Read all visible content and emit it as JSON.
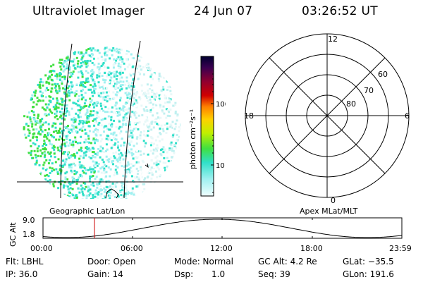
{
  "header": {
    "instrument": "Ultraviolet Imager",
    "date": "24 Jun 07",
    "time": "03:26:52 UT"
  },
  "colorbar": {
    "unit_label": "photon cm⁻²s⁻¹",
    "ticks": [
      "100",
      "10"
    ],
    "scale": "log"
  },
  "geo_panel": {
    "label": "Geographic Lat/Lon"
  },
  "polar_panel": {
    "label": "Apex MLat/MLT",
    "mlt_labels": {
      "top": "12",
      "left": "18",
      "right": "6",
      "bottom": "0"
    },
    "lat_labels": [
      "60",
      "70",
      "80"
    ]
  },
  "altitude_plot": {
    "ylabel": "GC Alt",
    "yticks": [
      "9.0",
      "1.8"
    ],
    "xticks": [
      "00:00",
      "06:00",
      "12:00",
      "18:00",
      "23:59"
    ],
    "marker_time": "03:26:52"
  },
  "info": {
    "flt": "Flt: LBHL",
    "ip": "IP: 36.0",
    "door": "Door: Open",
    "gain": "Gain: 14",
    "mode": "Mode: Normal",
    "dsp_label": "Dsp:",
    "dsp_value": "1.0",
    "gc_alt": "GC Alt: 4.2 Re",
    "seq": "Seq: 39",
    "glat": "GLat: −35.5",
    "glon": "GLon: 191.6"
  },
  "colors": {
    "marker": "#cc0000",
    "scale_stops": [
      "#000030",
      "#3a0050",
      "#900030",
      "#d00000",
      "#ff8000",
      "#ffd000",
      "#c0f000",
      "#40e040",
      "#30e0c8",
      "#a0f0f0",
      "#f0ffff"
    ]
  }
}
